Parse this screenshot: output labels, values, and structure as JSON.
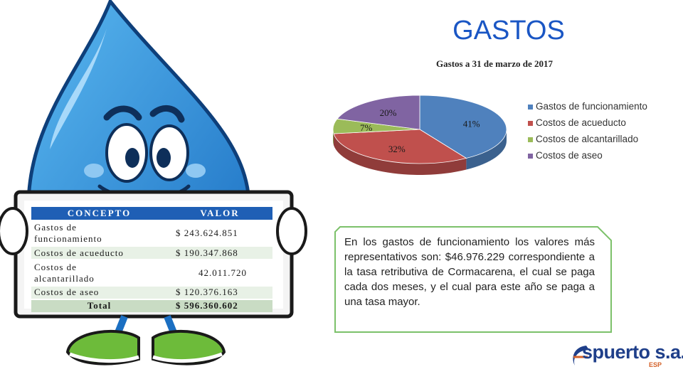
{
  "slide": {
    "title": "GASTOS"
  },
  "table": {
    "headers": [
      "CONCEPTO",
      "VALOR"
    ],
    "rows": [
      {
        "concept_line1": "Gastos de",
        "concept_line2": "funcionamiento",
        "value": "$ 243.624.851"
      },
      {
        "concept_line1": "Costos de acueducto",
        "value": "$ 190.347.868"
      },
      {
        "concept_line1": "Costos de",
        "concept_line2": "alcantarillado",
        "value": "42.011.720"
      },
      {
        "concept_line1": "Costos de aseo",
        "value": "$ 120.376.163"
      },
      {
        "concept_line1": "Total",
        "value": "$ 596.360.602"
      }
    ]
  },
  "chart_data": {
    "type": "pie",
    "title": "Gastos a 31 de marzo de 2017",
    "series": [
      {
        "name": "Gastos de funcionamiento",
        "value": 41,
        "label": "41%",
        "color": "#4f81bd"
      },
      {
        "name": "Costos de acueducto",
        "value": 32,
        "label": "32%",
        "color": "#c0504d"
      },
      {
        "name": "Costos de alcantarillado",
        "value": 7,
        "label": "7%",
        "color": "#9bbb59"
      },
      {
        "name": "Costos de aseo",
        "value": 20,
        "label": "20%",
        "color": "#8064a2"
      }
    ],
    "legend": "right",
    "style": "3d-pie"
  },
  "note": {
    "text": "En los gastos de funcionamiento los valores más representativos son: $46.976.229 correspondiente a la tasa retributiva de Cormacarena, el cual se paga cada dos meses, y el cual para este año se paga a una tasa mayor."
  },
  "logo": {
    "word": "spuerto s.a.",
    "suffix": "ESP"
  }
}
